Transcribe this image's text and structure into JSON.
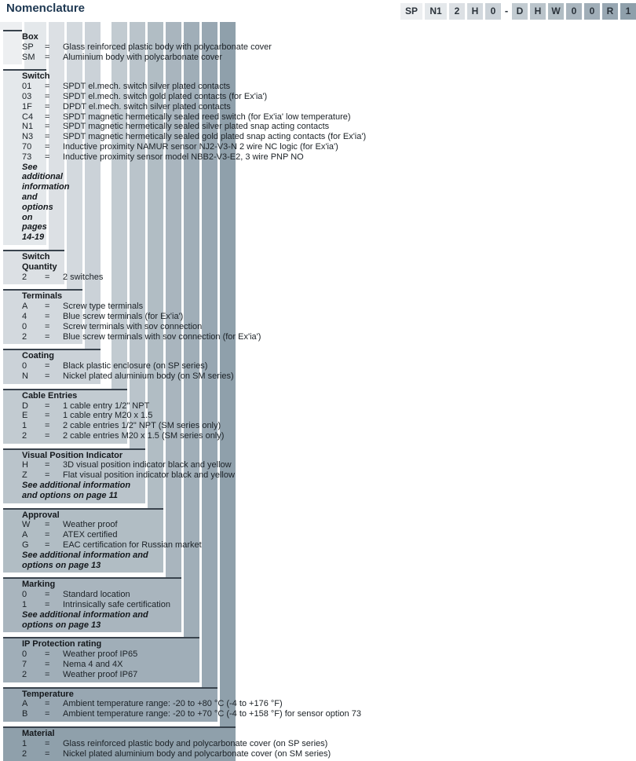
{
  "title": "Nomenclature",
  "styles": {
    "border_color": "#39434d",
    "title_color": "#1e3852",
    "code_text_color": "#2b333b"
  },
  "code": {
    "segments": [
      {
        "text": "SP",
        "type": "box"
      },
      {
        "text": "N1",
        "type": "box"
      },
      {
        "text": "2",
        "type": "box"
      },
      {
        "text": "H",
        "type": "box"
      },
      {
        "text": "0",
        "type": "box"
      },
      {
        "text": "-",
        "type": "dash"
      },
      {
        "text": "D",
        "type": "box"
      },
      {
        "text": "H",
        "type": "box"
      },
      {
        "text": "W",
        "type": "box"
      },
      {
        "text": "0",
        "type": "box"
      },
      {
        "text": "0",
        "type": "box"
      },
      {
        "text": "R",
        "type": "box"
      },
      {
        "text": "1",
        "type": "box"
      }
    ]
  },
  "equals_sign": "=",
  "sections": [
    {
      "name": "Box",
      "color": "#edeff1",
      "options": [
        {
          "code": "SP",
          "desc": "Glass reinforced plastic body with polycarbonate cover"
        },
        {
          "code": "SM",
          "desc": "Aluminium body with polycarbonate cover"
        }
      ],
      "note": ""
    },
    {
      "name": "Switch",
      "color": "#e4e8eb",
      "options": [
        {
          "code": "01",
          "desc": "SPDT el.mech. switch silver plated contacts"
        },
        {
          "code": "03",
          "desc": "SPDT el.mech. switch gold plated contacts (for Ex'ia')"
        },
        {
          "code": "1F",
          "desc": "DPDT el.mech. switch silver plated contacts"
        },
        {
          "code": "C4",
          "desc": "SPDT magnetic hermetically sealed reed switch (for Ex'ia' low temperature)"
        },
        {
          "code": "N1",
          "desc": "SPDT magnetic hermetically sealed silver plated snap acting contacts"
        },
        {
          "code": "N3",
          "desc": "SPDT magnetic hermetically sealed gold plated snap acting contacts (for Ex'ia')"
        },
        {
          "code": "70",
          "desc": "Inductive proximity NAMUR sensor NJ2-V3-N 2 wire NC logic (for Ex'ia')"
        },
        {
          "code": "73",
          "desc": "Inductive proximity sensor model NBB2-V3-E2, 3 wire PNP NO"
        }
      ],
      "note": "See additional information and options on pages 14-19"
    },
    {
      "name": "Switch Quantity",
      "color": "#dce0e4",
      "options": [
        {
          "code": "2",
          "desc": "2 switches"
        }
      ],
      "note": ""
    },
    {
      "name": "Terminals",
      "color": "#d3d9de",
      "options": [
        {
          "code": "A",
          "desc": "Screw type terminals"
        },
        {
          "code": "4",
          "desc": "Blue screw terminals (for Ex'ia')"
        },
        {
          "code": "0",
          "desc": "Screw terminals with sov connection"
        },
        {
          "code": "2",
          "desc": "Blue screw terminals with sov connection (for Ex'ia')"
        }
      ],
      "note": ""
    },
    {
      "name": "Coating",
      "color": "#cbd2d8",
      "options": [
        {
          "code": "0",
          "desc": "Black plastic enclosure (on SP series)"
        },
        {
          "code": "N",
          "desc": "Nickel plated aluminium body (on SM series)"
        }
      ],
      "note": ""
    },
    {
      "name": "Cable Entries",
      "color": "#c2cbd1",
      "options": [
        {
          "code": "D",
          "desc": "1 cable entry 1/2\" NPT"
        },
        {
          "code": "E",
          "desc": "1 cable entry M20 x 1.5"
        },
        {
          "code": "1",
          "desc": "2 cable entries 1/2\" NPT (SM series only)"
        },
        {
          "code": "2",
          "desc": "2 cable entries M20 x 1.5 (SM series only)"
        }
      ],
      "note": ""
    },
    {
      "name": "Visual Position Indicator",
      "color": "#bac4cb",
      "options": [
        {
          "code": "H",
          "desc": "3D visual position indicator black and yellow"
        },
        {
          "code": "Z",
          "desc": "Flat visual position indicator black and yellow"
        }
      ],
      "note": "See additional information and options on page 11"
    },
    {
      "name": "Approval",
      "color": "#b1bdc4",
      "options": [
        {
          "code": "W",
          "desc": "Weather proof"
        },
        {
          "code": "A",
          "desc": "ATEX certified"
        },
        {
          "code": "G",
          "desc": "EAC certification for Russian market"
        }
      ],
      "note": "See additional information and options on page 13"
    },
    {
      "name": "Marking",
      "color": "#a9b5be",
      "options": [
        {
          "code": "0",
          "desc": "Standard location"
        },
        {
          "code": "1",
          "desc": "Intrinsically safe certification"
        }
      ],
      "note": "See additional information and options on page 13"
    },
    {
      "name": "IP Protection rating",
      "color": "#a0aeb8",
      "options": [
        {
          "code": "0",
          "desc": "Weather proof IP65"
        },
        {
          "code": "7",
          "desc": "Nema 4 and 4X"
        },
        {
          "code": "2",
          "desc": "Weather proof IP67"
        }
      ],
      "note": ""
    },
    {
      "name": "Temperature",
      "color": "#98a7b2",
      "options": [
        {
          "code": "A",
          "desc": "Ambient temperature range: -20 to +80 °C (-4 to +176 °F)"
        },
        {
          "code": "B",
          "desc": "Ambient temperature range: -20 to +70 °C (-4 to +158 °F) for sensor option 73"
        }
      ],
      "note": ""
    },
    {
      "name": "Material",
      "color": "#8fa0ab",
      "options": [
        {
          "code": "1",
          "desc": "Glass reinforced plastic body and polycarbonate cover (on SP series)"
        },
        {
          "code": "2",
          "desc": "Nickel plated aluminium body and polycarbonate cover (on SM series)"
        }
      ],
      "note": ""
    }
  ]
}
